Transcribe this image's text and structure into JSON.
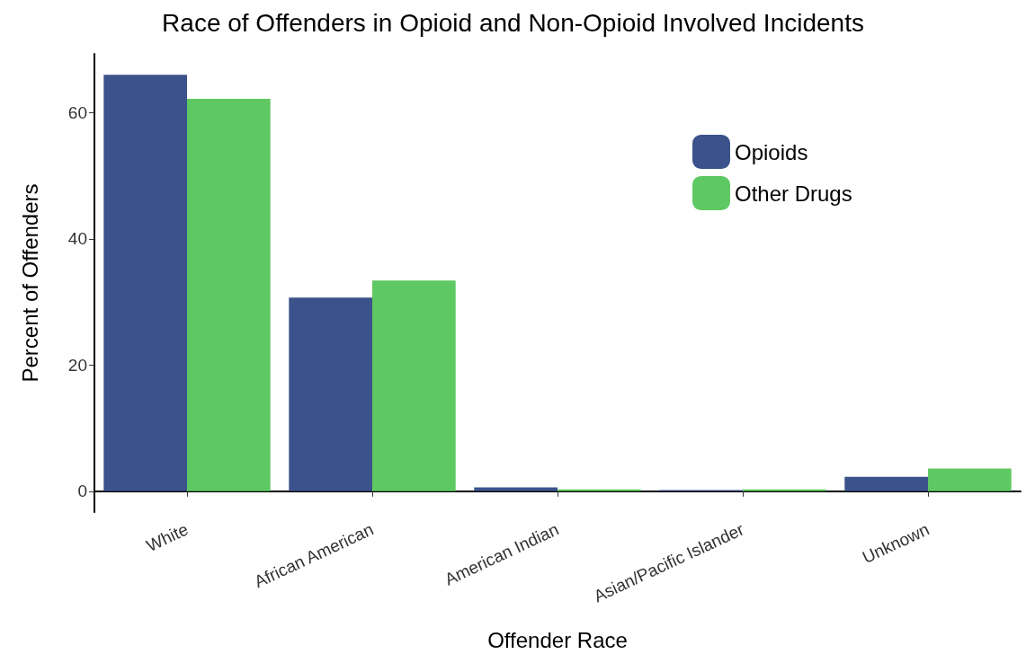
{
  "chart_data": {
    "type": "bar",
    "title": "Race of Offenders in Opioid and Non-Opioid Involved Incidents",
    "xlabel": "Offender Race",
    "ylabel": "Percent of Offenders",
    "categories": [
      "White",
      "African American",
      "American Indian",
      "Asian/Pacific Islander",
      "Unknown"
    ],
    "series": [
      {
        "name": "Opioids",
        "color": "#3b528b",
        "values": [
          66.0,
          30.7,
          0.6,
          0.2,
          2.3
        ]
      },
      {
        "name": "Other Drugs",
        "color": "#5ec962",
        "values": [
          62.2,
          33.4,
          0.3,
          0.3,
          3.6
        ]
      }
    ],
    "ylim": [
      -3.3,
      69.3
    ],
    "yticks": [
      0,
      20,
      40,
      60
    ],
    "grid": false,
    "legend": "top right"
  }
}
